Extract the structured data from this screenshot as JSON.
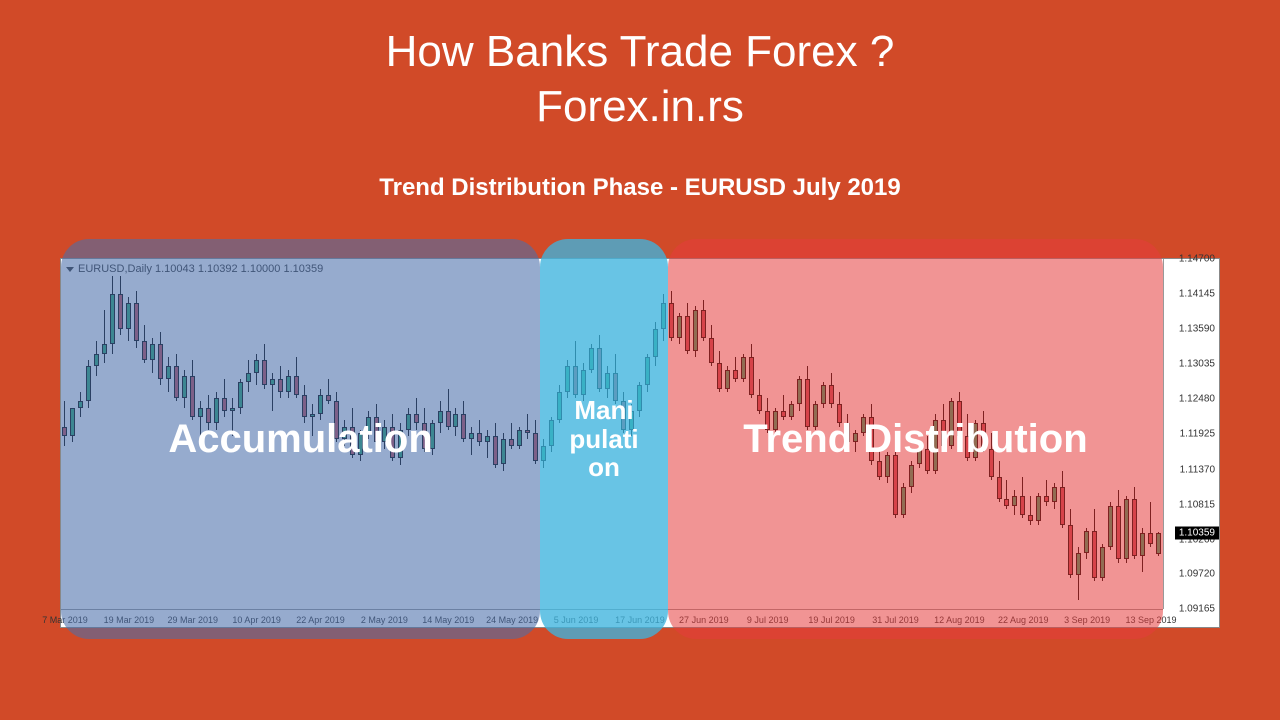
{
  "title": {
    "line1": "How Banks Trade Forex ?",
    "line2": "Forex.in.rs",
    "subtitle": "Trend Distribution Phase - EURUSD July 2019"
  },
  "chart": {
    "header": "EURUSD,Daily  1.10043 1.10392 1.10000 1.10359",
    "colors": {
      "up_fill": "#2aa870",
      "up_border": "#000000",
      "down_fill": "#c34d5a",
      "down_border": "#000000",
      "wick": "#000000",
      "bg": "#ffffff",
      "axis": "#999999",
      "price_tag_bg": "#000000",
      "price_tag_fg": "#ffffff"
    },
    "ylim": [
      1.09165,
      1.147
    ],
    "yticks": [
      {
        "v": 1.147,
        "label": "1.14700"
      },
      {
        "v": 1.14145,
        "label": "1.14145"
      },
      {
        "v": 1.1359,
        "label": "1.13590"
      },
      {
        "v": 1.13035,
        "label": "1.13035"
      },
      {
        "v": 1.1248,
        "label": "1.12480"
      },
      {
        "v": 1.11925,
        "label": "1.11925"
      },
      {
        "v": 1.1137,
        "label": "1.11370"
      },
      {
        "v": 1.10815,
        "label": "1.10815"
      },
      {
        "v": 1.1026,
        "label": "1.10260"
      },
      {
        "v": 1.0972,
        "label": "1.09720"
      },
      {
        "v": 1.09165,
        "label": "1.09165"
      }
    ],
    "xticks": [
      {
        "i": 0,
        "label": "7 Mar 2019"
      },
      {
        "i": 8,
        "label": "19 Mar 2019"
      },
      {
        "i": 16,
        "label": "29 Mar 2019"
      },
      {
        "i": 24,
        "label": "10 Apr 2019"
      },
      {
        "i": 32,
        "label": "22 Apr 2019"
      },
      {
        "i": 40,
        "label": "2 May 2019"
      },
      {
        "i": 48,
        "label": "14 May 2019"
      },
      {
        "i": 56,
        "label": "24 May 2019"
      },
      {
        "i": 64,
        "label": "5 Jun 2019"
      },
      {
        "i": 72,
        "label": "17 Jun 2019"
      },
      {
        "i": 80,
        "label": "27 Jun 2019"
      },
      {
        "i": 88,
        "label": "9 Jul 2019"
      },
      {
        "i": 96,
        "label": "19 Jul 2019"
      },
      {
        "i": 104,
        "label": "31 Jul 2019"
      },
      {
        "i": 112,
        "label": "12 Aug 2019"
      },
      {
        "i": 120,
        "label": "22 Aug 2019"
      },
      {
        "i": 128,
        "label": "3 Sep 2019"
      },
      {
        "i": 136,
        "label": "13 Sep 2019"
      }
    ],
    "last_price": {
      "v": 1.10359,
      "label": "1.10359"
    },
    "candles": [
      {
        "o": 1.1205,
        "h": 1.1245,
        "l": 1.1175,
        "c": 1.119
      },
      {
        "o": 1.119,
        "h": 1.123,
        "l": 1.118,
        "c": 1.1235
      },
      {
        "o": 1.1235,
        "h": 1.126,
        "l": 1.122,
        "c": 1.1245
      },
      {
        "o": 1.1245,
        "h": 1.131,
        "l": 1.1235,
        "c": 1.13
      },
      {
        "o": 1.13,
        "h": 1.134,
        "l": 1.1285,
        "c": 1.132
      },
      {
        "o": 1.132,
        "h": 1.139,
        "l": 1.1305,
        "c": 1.1335
      },
      {
        "o": 1.1335,
        "h": 1.145,
        "l": 1.132,
        "c": 1.1415
      },
      {
        "o": 1.1415,
        "h": 1.1445,
        "l": 1.135,
        "c": 1.136
      },
      {
        "o": 1.136,
        "h": 1.141,
        "l": 1.134,
        "c": 1.14
      },
      {
        "o": 1.14,
        "h": 1.142,
        "l": 1.133,
        "c": 1.134
      },
      {
        "o": 1.134,
        "h": 1.1365,
        "l": 1.1305,
        "c": 1.131
      },
      {
        "o": 1.131,
        "h": 1.1345,
        "l": 1.129,
        "c": 1.1335
      },
      {
        "o": 1.1335,
        "h": 1.1355,
        "l": 1.127,
        "c": 1.128
      },
      {
        "o": 1.128,
        "h": 1.1315,
        "l": 1.126,
        "c": 1.13
      },
      {
        "o": 1.13,
        "h": 1.132,
        "l": 1.1245,
        "c": 1.125
      },
      {
        "o": 1.125,
        "h": 1.1295,
        "l": 1.1235,
        "c": 1.1285
      },
      {
        "o": 1.1285,
        "h": 1.131,
        "l": 1.1215,
        "c": 1.122
      },
      {
        "o": 1.122,
        "h": 1.1245,
        "l": 1.118,
        "c": 1.1235
      },
      {
        "o": 1.1235,
        "h": 1.1255,
        "l": 1.12,
        "c": 1.121
      },
      {
        "o": 1.121,
        "h": 1.126,
        "l": 1.12,
        "c": 1.125
      },
      {
        "o": 1.125,
        "h": 1.128,
        "l": 1.122,
        "c": 1.123
      },
      {
        "o": 1.123,
        "h": 1.125,
        "l": 1.119,
        "c": 1.1235
      },
      {
        "o": 1.1235,
        "h": 1.128,
        "l": 1.1225,
        "c": 1.1275
      },
      {
        "o": 1.1275,
        "h": 1.131,
        "l": 1.126,
        "c": 1.129
      },
      {
        "o": 1.129,
        "h": 1.132,
        "l": 1.127,
        "c": 1.131
      },
      {
        "o": 1.131,
        "h": 1.1335,
        "l": 1.1265,
        "c": 1.127
      },
      {
        "o": 1.127,
        "h": 1.129,
        "l": 1.123,
        "c": 1.128
      },
      {
        "o": 1.128,
        "h": 1.13,
        "l": 1.125,
        "c": 1.126
      },
      {
        "o": 1.126,
        "h": 1.1295,
        "l": 1.125,
        "c": 1.1285
      },
      {
        "o": 1.1285,
        "h": 1.1315,
        "l": 1.125,
        "c": 1.1255
      },
      {
        "o": 1.1255,
        "h": 1.127,
        "l": 1.121,
        "c": 1.122
      },
      {
        "o": 1.122,
        "h": 1.124,
        "l": 1.119,
        "c": 1.1225
      },
      {
        "o": 1.1225,
        "h": 1.1265,
        "l": 1.1215,
        "c": 1.1255
      },
      {
        "o": 1.1255,
        "h": 1.128,
        "l": 1.124,
        "c": 1.1245
      },
      {
        "o": 1.1245,
        "h": 1.126,
        "l": 1.118,
        "c": 1.1185
      },
      {
        "o": 1.1185,
        "h": 1.1215,
        "l": 1.1175,
        "c": 1.1205
      },
      {
        "o": 1.1205,
        "h": 1.1235,
        "l": 1.1155,
        "c": 1.116
      },
      {
        "o": 1.116,
        "h": 1.12,
        "l": 1.115,
        "c": 1.1195
      },
      {
        "o": 1.1195,
        "h": 1.123,
        "l": 1.1185,
        "c": 1.122
      },
      {
        "o": 1.122,
        "h": 1.124,
        "l": 1.1175,
        "c": 1.118
      },
      {
        "o": 1.118,
        "h": 1.1215,
        "l": 1.117,
        "c": 1.1205
      },
      {
        "o": 1.1205,
        "h": 1.1225,
        "l": 1.115,
        "c": 1.1155
      },
      {
        "o": 1.1155,
        "h": 1.121,
        "l": 1.1145,
        "c": 1.12
      },
      {
        "o": 1.12,
        "h": 1.1235,
        "l": 1.119,
        "c": 1.1225
      },
      {
        "o": 1.1225,
        "h": 1.125,
        "l": 1.12,
        "c": 1.121
      },
      {
        "o": 1.121,
        "h": 1.1235,
        "l": 1.1165,
        "c": 1.117
      },
      {
        "o": 1.117,
        "h": 1.1215,
        "l": 1.116,
        "c": 1.121
      },
      {
        "o": 1.121,
        "h": 1.1245,
        "l": 1.1195,
        "c": 1.123
      },
      {
        "o": 1.123,
        "h": 1.1265,
        "l": 1.12,
        "c": 1.1205
      },
      {
        "o": 1.1205,
        "h": 1.1235,
        "l": 1.119,
        "c": 1.1225
      },
      {
        "o": 1.1225,
        "h": 1.1245,
        "l": 1.118,
        "c": 1.1185
      },
      {
        "o": 1.1185,
        "h": 1.1205,
        "l": 1.116,
        "c": 1.1195
      },
      {
        "o": 1.1195,
        "h": 1.1215,
        "l": 1.1175,
        "c": 1.118
      },
      {
        "o": 1.118,
        "h": 1.12,
        "l": 1.1155,
        "c": 1.119
      },
      {
        "o": 1.119,
        "h": 1.121,
        "l": 1.114,
        "c": 1.1145
      },
      {
        "o": 1.1145,
        "h": 1.1195,
        "l": 1.1135,
        "c": 1.1185
      },
      {
        "o": 1.1185,
        "h": 1.121,
        "l": 1.117,
        "c": 1.1175
      },
      {
        "o": 1.1175,
        "h": 1.1205,
        "l": 1.117,
        "c": 1.12
      },
      {
        "o": 1.12,
        "h": 1.1225,
        "l": 1.1185,
        "c": 1.1195
      },
      {
        "o": 1.1195,
        "h": 1.1215,
        "l": 1.1145,
        "c": 1.115
      },
      {
        "o": 1.115,
        "h": 1.1185,
        "l": 1.114,
        "c": 1.1175
      },
      {
        "o": 1.1175,
        "h": 1.122,
        "l": 1.1165,
        "c": 1.1215
      },
      {
        "o": 1.1215,
        "h": 1.127,
        "l": 1.121,
        "c": 1.126
      },
      {
        "o": 1.126,
        "h": 1.131,
        "l": 1.125,
        "c": 1.13
      },
      {
        "o": 1.13,
        "h": 1.134,
        "l": 1.125,
        "c": 1.1255
      },
      {
        "o": 1.1255,
        "h": 1.1305,
        "l": 1.1245,
        "c": 1.1295
      },
      {
        "o": 1.1295,
        "h": 1.1335,
        "l": 1.129,
        "c": 1.133
      },
      {
        "o": 1.133,
        "h": 1.135,
        "l": 1.126,
        "c": 1.1265
      },
      {
        "o": 1.1265,
        "h": 1.13,
        "l": 1.125,
        "c": 1.129
      },
      {
        "o": 1.129,
        "h": 1.132,
        "l": 1.124,
        "c": 1.1245
      },
      {
        "o": 1.1245,
        "h": 1.126,
        "l": 1.1195,
        "c": 1.12
      },
      {
        "o": 1.12,
        "h": 1.124,
        "l": 1.119,
        "c": 1.123
      },
      {
        "o": 1.123,
        "h": 1.1275,
        "l": 1.122,
        "c": 1.127
      },
      {
        "o": 1.127,
        "h": 1.132,
        "l": 1.126,
        "c": 1.1315
      },
      {
        "o": 1.1315,
        "h": 1.137,
        "l": 1.13,
        "c": 1.136
      },
      {
        "o": 1.136,
        "h": 1.1415,
        "l": 1.134,
        "c": 1.14
      },
      {
        "o": 1.14,
        "h": 1.142,
        "l": 1.134,
        "c": 1.1345
      },
      {
        "o": 1.1345,
        "h": 1.1385,
        "l": 1.1335,
        "c": 1.138
      },
      {
        "o": 1.138,
        "h": 1.14,
        "l": 1.132,
        "c": 1.1325
      },
      {
        "o": 1.1325,
        "h": 1.1395,
        "l": 1.1315,
        "c": 1.139
      },
      {
        "o": 1.139,
        "h": 1.1405,
        "l": 1.134,
        "c": 1.1345
      },
      {
        "o": 1.1345,
        "h": 1.1365,
        "l": 1.13,
        "c": 1.1305
      },
      {
        "o": 1.1305,
        "h": 1.1325,
        "l": 1.126,
        "c": 1.1265
      },
      {
        "o": 1.1265,
        "h": 1.13,
        "l": 1.126,
        "c": 1.1295
      },
      {
        "o": 1.1295,
        "h": 1.1315,
        "l": 1.1275,
        "c": 1.128
      },
      {
        "o": 1.128,
        "h": 1.132,
        "l": 1.1275,
        "c": 1.1315
      },
      {
        "o": 1.1315,
        "h": 1.1335,
        "l": 1.125,
        "c": 1.1255
      },
      {
        "o": 1.1255,
        "h": 1.128,
        "l": 1.1225,
        "c": 1.123
      },
      {
        "o": 1.123,
        "h": 1.125,
        "l": 1.1195,
        "c": 1.12
      },
      {
        "o": 1.12,
        "h": 1.1235,
        "l": 1.1195,
        "c": 1.123
      },
      {
        "o": 1.123,
        "h": 1.1255,
        "l": 1.1215,
        "c": 1.122
      },
      {
        "o": 1.122,
        "h": 1.1245,
        "l": 1.1215,
        "c": 1.124
      },
      {
        "o": 1.124,
        "h": 1.1285,
        "l": 1.123,
        "c": 1.128
      },
      {
        "o": 1.128,
        "h": 1.13,
        "l": 1.12,
        "c": 1.1205
      },
      {
        "o": 1.1205,
        "h": 1.1245,
        "l": 1.12,
        "c": 1.124
      },
      {
        "o": 1.124,
        "h": 1.1275,
        "l": 1.1235,
        "c": 1.127
      },
      {
        "o": 1.127,
        "h": 1.129,
        "l": 1.1235,
        "c": 1.124
      },
      {
        "o": 1.124,
        "h": 1.126,
        "l": 1.1205,
        "c": 1.121
      },
      {
        "o": 1.121,
        "h": 1.1225,
        "l": 1.1175,
        "c": 1.118
      },
      {
        "o": 1.118,
        "h": 1.12,
        "l": 1.1165,
        "c": 1.1195
      },
      {
        "o": 1.1195,
        "h": 1.1225,
        "l": 1.119,
        "c": 1.122
      },
      {
        "o": 1.122,
        "h": 1.124,
        "l": 1.1145,
        "c": 1.115
      },
      {
        "o": 1.115,
        "h": 1.117,
        "l": 1.112,
        "c": 1.1125
      },
      {
        "o": 1.1125,
        "h": 1.1165,
        "l": 1.1115,
        "c": 1.116
      },
      {
        "o": 1.116,
        "h": 1.118,
        "l": 1.106,
        "c": 1.1065
      },
      {
        "o": 1.1065,
        "h": 1.1115,
        "l": 1.106,
        "c": 1.111
      },
      {
        "o": 1.111,
        "h": 1.115,
        "l": 1.11,
        "c": 1.1145
      },
      {
        "o": 1.1145,
        "h": 1.1175,
        "l": 1.114,
        "c": 1.117
      },
      {
        "o": 1.117,
        "h": 1.119,
        "l": 1.113,
        "c": 1.1135
      },
      {
        "o": 1.1135,
        "h": 1.1225,
        "l": 1.113,
        "c": 1.1215
      },
      {
        "o": 1.1215,
        "h": 1.124,
        "l": 1.117,
        "c": 1.1175
      },
      {
        "o": 1.1175,
        "h": 1.125,
        "l": 1.117,
        "c": 1.1245
      },
      {
        "o": 1.1245,
        "h": 1.126,
        "l": 1.1185,
        "c": 1.119
      },
      {
        "o": 1.119,
        "h": 1.1225,
        "l": 1.115,
        "c": 1.1155
      },
      {
        "o": 1.1155,
        "h": 1.1215,
        "l": 1.115,
        "c": 1.121
      },
      {
        "o": 1.121,
        "h": 1.123,
        "l": 1.1165,
        "c": 1.117
      },
      {
        "o": 1.117,
        "h": 1.1195,
        "l": 1.112,
        "c": 1.1125
      },
      {
        "o": 1.1125,
        "h": 1.115,
        "l": 1.1085,
        "c": 1.109
      },
      {
        "o": 1.109,
        "h": 1.112,
        "l": 1.1075,
        "c": 1.108
      },
      {
        "o": 1.108,
        "h": 1.1105,
        "l": 1.1065,
        "c": 1.1095
      },
      {
        "o": 1.1095,
        "h": 1.1125,
        "l": 1.106,
        "c": 1.1065
      },
      {
        "o": 1.1065,
        "h": 1.1095,
        "l": 1.105,
        "c": 1.1055
      },
      {
        "o": 1.1055,
        "h": 1.11,
        "l": 1.105,
        "c": 1.1095
      },
      {
        "o": 1.1095,
        "h": 1.112,
        "l": 1.108,
        "c": 1.1085
      },
      {
        "o": 1.1085,
        "h": 1.1115,
        "l": 1.1075,
        "c": 1.111
      },
      {
        "o": 1.111,
        "h": 1.1135,
        "l": 1.1045,
        "c": 1.105
      },
      {
        "o": 1.105,
        "h": 1.1075,
        "l": 1.0965,
        "c": 1.097
      },
      {
        "o": 1.097,
        "h": 1.1015,
        "l": 1.093,
        "c": 1.1005
      },
      {
        "o": 1.1005,
        "h": 1.1045,
        "l": 1.0995,
        "c": 1.104
      },
      {
        "o": 1.104,
        "h": 1.1075,
        "l": 1.096,
        "c": 1.0965
      },
      {
        "o": 1.0965,
        "h": 1.102,
        "l": 1.096,
        "c": 1.1015
      },
      {
        "o": 1.1015,
        "h": 1.1085,
        "l": 1.101,
        "c": 1.108
      },
      {
        "o": 1.108,
        "h": 1.1105,
        "l": 1.099,
        "c": 1.0995
      },
      {
        "o": 1.0995,
        "h": 1.1095,
        "l": 1.099,
        "c": 1.109
      },
      {
        "o": 1.109,
        "h": 1.111,
        "l": 1.0995,
        "c": 1.1
      },
      {
        "o": 1.1,
        "h": 1.1045,
        "l": 1.0975,
        "c": 1.1036
      },
      {
        "o": 1.1036,
        "h": 1.1085,
        "l": 1.1015,
        "c": 1.102
      },
      {
        "o": 1.1004,
        "h": 1.1039,
        "l": 1.1,
        "c": 1.1036
      }
    ]
  },
  "zones": {
    "accumulation": {
      "label": "Accumulation",
      "start_i": 0,
      "end_i": 60,
      "color": "rgba(74,110,170,0.58)"
    },
    "manipulation": {
      "label": "Manipulation",
      "start_i": 60,
      "end_i": 76,
      "color": "rgba(62,180,222,0.78)"
    },
    "distribution": {
      "label": "Trend Distribution",
      "start_i": 76,
      "end_i": 138,
      "color": "rgba(230,60,60,0.55)"
    }
  }
}
